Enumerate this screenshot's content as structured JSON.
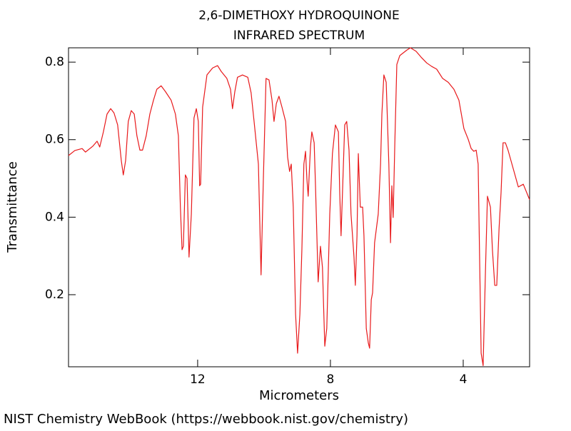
{
  "chart_data": {
    "type": "line",
    "title": "2,6-DIMETHOXY HYDROQUINONE",
    "subtitle": "INFRARED SPECTRUM",
    "x_label": "Micrometers",
    "y_label": "Transmittance",
    "source": "NIST Chemistry WebBook (https://webbook.nist.gov/chemistry)",
    "xlim": [
      15.89,
      2.0
    ],
    "ylim": [
      0.014,
      0.837
    ],
    "xticks": [
      12,
      8,
      4
    ],
    "yticks": [
      0.2,
      0.4,
      0.6,
      0.8
    ],
    "x": [
      15.89,
      15.7,
      15.48,
      15.38,
      15.16,
      15.03,
      14.95,
      14.84,
      14.73,
      14.62,
      14.52,
      14.41,
      14.3,
      14.24,
      14.17,
      14.09,
      14.0,
      13.91,
      13.83,
      13.74,
      13.66,
      13.55,
      13.44,
      13.33,
      13.23,
      13.1,
      12.97,
      12.8,
      12.67,
      12.58,
      12.52,
      12.47,
      12.43,
      12.37,
      12.32,
      12.26,
      12.19,
      12.11,
      12.04,
      11.98,
      11.94,
      11.91,
      11.85,
      11.72,
      11.55,
      11.4,
      11.29,
      11.12,
      11.01,
      10.95,
      10.88,
      10.8,
      10.65,
      10.49,
      10.39,
      10.3,
      10.17,
      10.09,
      10.02,
      9.94,
      9.85,
      9.76,
      9.7,
      9.63,
      9.55,
      9.46,
      9.35,
      9.29,
      9.23,
      9.18,
      9.12,
      9.05,
      8.99,
      8.92,
      8.86,
      8.8,
      8.75,
      8.71,
      8.67,
      8.6,
      8.56,
      8.49,
      8.45,
      8.37,
      8.3,
      8.24,
      8.17,
      8.11,
      8.02,
      7.94,
      7.85,
      7.76,
      7.72,
      7.68,
      7.63,
      7.57,
      7.51,
      7.44,
      7.38,
      7.29,
      7.25,
      7.2,
      7.16,
      7.1,
      7.03,
      6.99,
      6.92,
      6.86,
      6.82,
      6.77,
      6.73,
      6.67,
      6.56,
      6.49,
      6.45,
      6.39,
      6.32,
      6.24,
      6.19,
      6.15,
      6.11,
      6.06,
      6.0,
      5.91,
      5.7,
      5.59,
      5.42,
      5.27,
      5.1,
      4.95,
      4.8,
      4.62,
      4.45,
      4.28,
      4.13,
      3.98,
      3.85,
      3.76,
      3.68,
      3.61,
      3.55,
      3.51,
      3.46,
      3.4,
      3.33,
      3.27,
      3.18,
      3.12,
      3.05,
      2.99,
      2.92,
      2.86,
      2.8,
      2.73,
      2.65,
      2.47,
      2.34,
      2.19,
      2.0
    ],
    "series": [
      {
        "color": "#e8191b",
        "values": [
          0.559,
          0.572,
          0.577,
          0.568,
          0.583,
          0.596,
          0.581,
          0.62,
          0.666,
          0.68,
          0.669,
          0.638,
          0.546,
          0.509,
          0.546,
          0.647,
          0.675,
          0.666,
          0.61,
          0.573,
          0.573,
          0.61,
          0.666,
          0.702,
          0.73,
          0.739,
          0.724,
          0.702,
          0.666,
          0.61,
          0.426,
          0.316,
          0.325,
          0.509,
          0.5,
          0.297,
          0.408,
          0.656,
          0.68,
          0.647,
          0.481,
          0.485,
          0.684,
          0.767,
          0.785,
          0.791,
          0.776,
          0.758,
          0.73,
          0.68,
          0.724,
          0.761,
          0.767,
          0.761,
          0.721,
          0.647,
          0.537,
          0.251,
          0.5,
          0.758,
          0.754,
          0.702,
          0.647,
          0.693,
          0.712,
          0.684,
          0.647,
          0.555,
          0.518,
          0.537,
          0.426,
          0.15,
          0.049,
          0.15,
          0.316,
          0.537,
          0.57,
          0.5,
          0.454,
          0.583,
          0.62,
          0.592,
          0.481,
          0.233,
          0.325,
          0.27,
          0.067,
          0.113,
          0.408,
          0.564,
          0.638,
          0.62,
          0.463,
          0.352,
          0.481,
          0.638,
          0.647,
          0.573,
          0.408,
          0.297,
          0.224,
          0.352,
          0.564,
          0.426,
          0.426,
          0.352,
          0.113,
          0.076,
          0.062,
          0.187,
          0.205,
          0.334,
          0.408,
          0.537,
          0.666,
          0.767,
          0.748,
          0.537,
          0.334,
          0.481,
          0.399,
          0.592,
          0.794,
          0.817,
          0.831,
          0.837,
          0.828,
          0.813,
          0.798,
          0.789,
          0.782,
          0.758,
          0.748,
          0.73,
          0.702,
          0.629,
          0.601,
          0.577,
          0.57,
          0.573,
          0.537,
          0.316,
          0.049,
          0.017,
          0.26,
          0.454,
          0.426,
          0.316,
          0.224,
          0.224,
          0.371,
          0.463,
          0.592,
          0.592,
          0.573,
          0.518,
          0.478,
          0.485,
          0.445
        ]
      }
    ]
  }
}
